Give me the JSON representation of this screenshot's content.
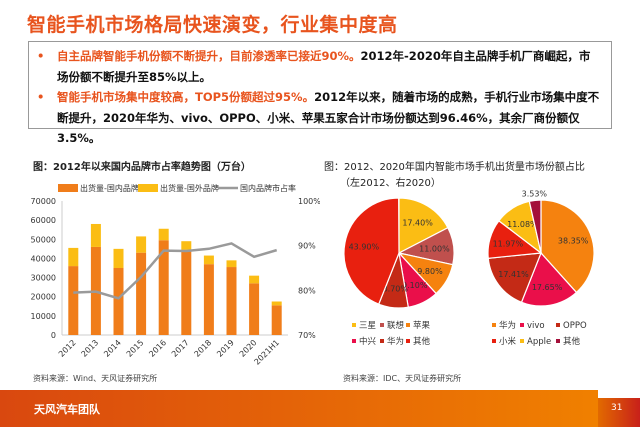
{
  "header": {
    "title": "智能手机市场格局快速演变，行业集中度高"
  },
  "bullets": [
    {
      "highlight": "自主品牌智能手机份额不断提升，目前渗透率已接近90%。",
      "text": "2012年-2020年自主品牌手机厂商崛起，市场份额不断提升至85%以上。"
    },
    {
      "highlight": "智能手机市场集中度较高，TOP5份额超过95%。",
      "text": "2012年以来，随着市场的成熟，手机行业市场集中度不断提升，2020年华为、vivo、OPPO、小米、苹果五家合计市场份额达到96.46%，其余厂商份额仅3.5%。"
    }
  ],
  "chart_data": [
    {
      "type": "bar",
      "title": "图：2012年以来国内品牌市占率趋势图（万台）",
      "categories": [
        "2012",
        "2013",
        "2014",
        "2015",
        "2016",
        "2017",
        "2018",
        "2019",
        "2020",
        "2021H1"
      ],
      "series": [
        {
          "name": "出货量-国内品牌",
          "kind": "bar-stacked",
          "color": "#f07d1a",
          "values": [
            36000,
            46000,
            35000,
            43000,
            49500,
            44500,
            37000,
            35500,
            27000,
            15500
          ]
        },
        {
          "name": "出货量-国外品牌",
          "kind": "bar-stacked",
          "color": "#fbbd14",
          "values": [
            9500,
            12000,
            10000,
            8500,
            6000,
            4500,
            4500,
            3500,
            4000,
            2000
          ]
        },
        {
          "name": "国内品牌市占率",
          "kind": "line",
          "axis": "right",
          "color": "#9a9a9a",
          "values": [
            79.5,
            79.7,
            78.2,
            83.0,
            88.9,
            88.8,
            89.3,
            90.5,
            87.5,
            89.0
          ]
        }
      ],
      "yticks": [
        "0",
        "10000",
        "20000",
        "30000",
        "40000",
        "50000",
        "60000",
        "70000"
      ],
      "ylim": [
        0,
        70000
      ],
      "y2ticks": [
        "70%",
        "80%",
        "90%",
        "100%"
      ],
      "y2lim": [
        70,
        100
      ],
      "legend": "top",
      "source": "资料来源：Wind、天风证券研究所"
    },
    {
      "type": "pie",
      "title": "图：2012、2020年国内智能市场手机出货量市场份额占比",
      "subtitle": "（左2012、右2020）",
      "pies": [
        {
          "year": "2012",
          "slices": [
            {
              "name": "三星",
              "value": 17.4,
              "label": "17.40%",
              "color": "#fbbd14"
            },
            {
              "name": "联想",
              "value": 11.0,
              "label": "11.00%",
              "color": "#c0504d"
            },
            {
              "name": "苹果",
              "value": 9.8,
              "label": "9.80%",
              "color": "#f5820f"
            },
            {
              "name": "中兴",
              "value": 9.1,
              "label": "9.10%",
              "color": "#ea0f4a"
            },
            {
              "name": "华为",
              "value": 8.7,
              "label": "8.70%",
              "color": "#c42a16"
            },
            {
              "name": "其他",
              "value": 43.9,
              "label": "43.90%",
              "color": "#e8200f"
            }
          ]
        },
        {
          "year": "2020",
          "slices": [
            {
              "name": "华为",
              "value": 38.35,
              "label": "38.35%",
              "color": "#f5820f"
            },
            {
              "name": "vivo",
              "value": 17.65,
              "label": "17.65%",
              "color": "#ea0f4a"
            },
            {
              "name": "OPPO",
              "value": 17.41,
              "label": "17.41%",
              "color": "#c42a16"
            },
            {
              "name": "小米",
              "value": 11.97,
              "label": "11.97%",
              "color": "#e8200f"
            },
            {
              "name": "Apple",
              "value": 11.08,
              "label": "11.08%",
              "color": "#fbbd14"
            },
            {
              "name": "其他",
              "value": 3.53,
              "label": "3.53%",
              "color": "#a4103a"
            }
          ]
        }
      ],
      "source": "资料来源：IDC、天风证券研究所"
    }
  ],
  "footer": {
    "team": "天风汽车团队",
    "page": "31"
  }
}
